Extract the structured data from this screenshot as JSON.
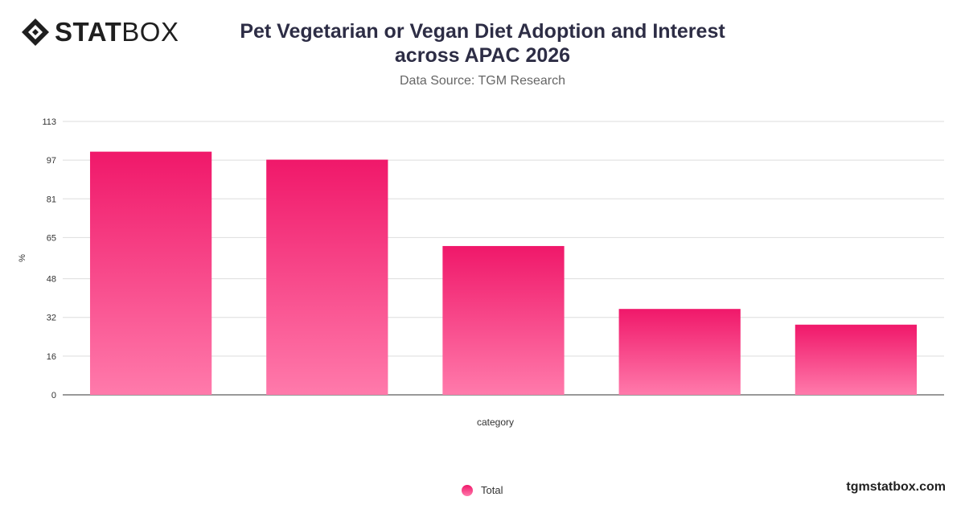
{
  "brand": {
    "logo_bold": "STAT",
    "logo_regular": "BOX",
    "logo_icon": "diamond-logo-icon"
  },
  "title_line1": "Pet Vegetarian or Vegan Diet Adoption and Interest",
  "title_line2": "across APAC 2026",
  "subtitle": "Data Source: TGM Research",
  "footer": "tgmstatbox.com",
  "colors": {
    "bar_top": "#f0186a",
    "bar_bottom": "#ff7aab",
    "grid": "#dddddd",
    "axis": "#333333"
  },
  "chart_data": {
    "type": "bar",
    "categories": [
      "",
      "",
      "",
      "",
      ""
    ],
    "series": [
      {
        "name": "Total",
        "values": [
          100.5,
          97.2,
          61.5,
          35.5,
          29.0
        ]
      }
    ],
    "xlabel": "category",
    "ylabel": "%",
    "ylim": [
      0,
      113
    ],
    "yticks": [
      0,
      16,
      32,
      48,
      65,
      81,
      97,
      113
    ],
    "grid": true,
    "legend_position": "bottom-center"
  }
}
